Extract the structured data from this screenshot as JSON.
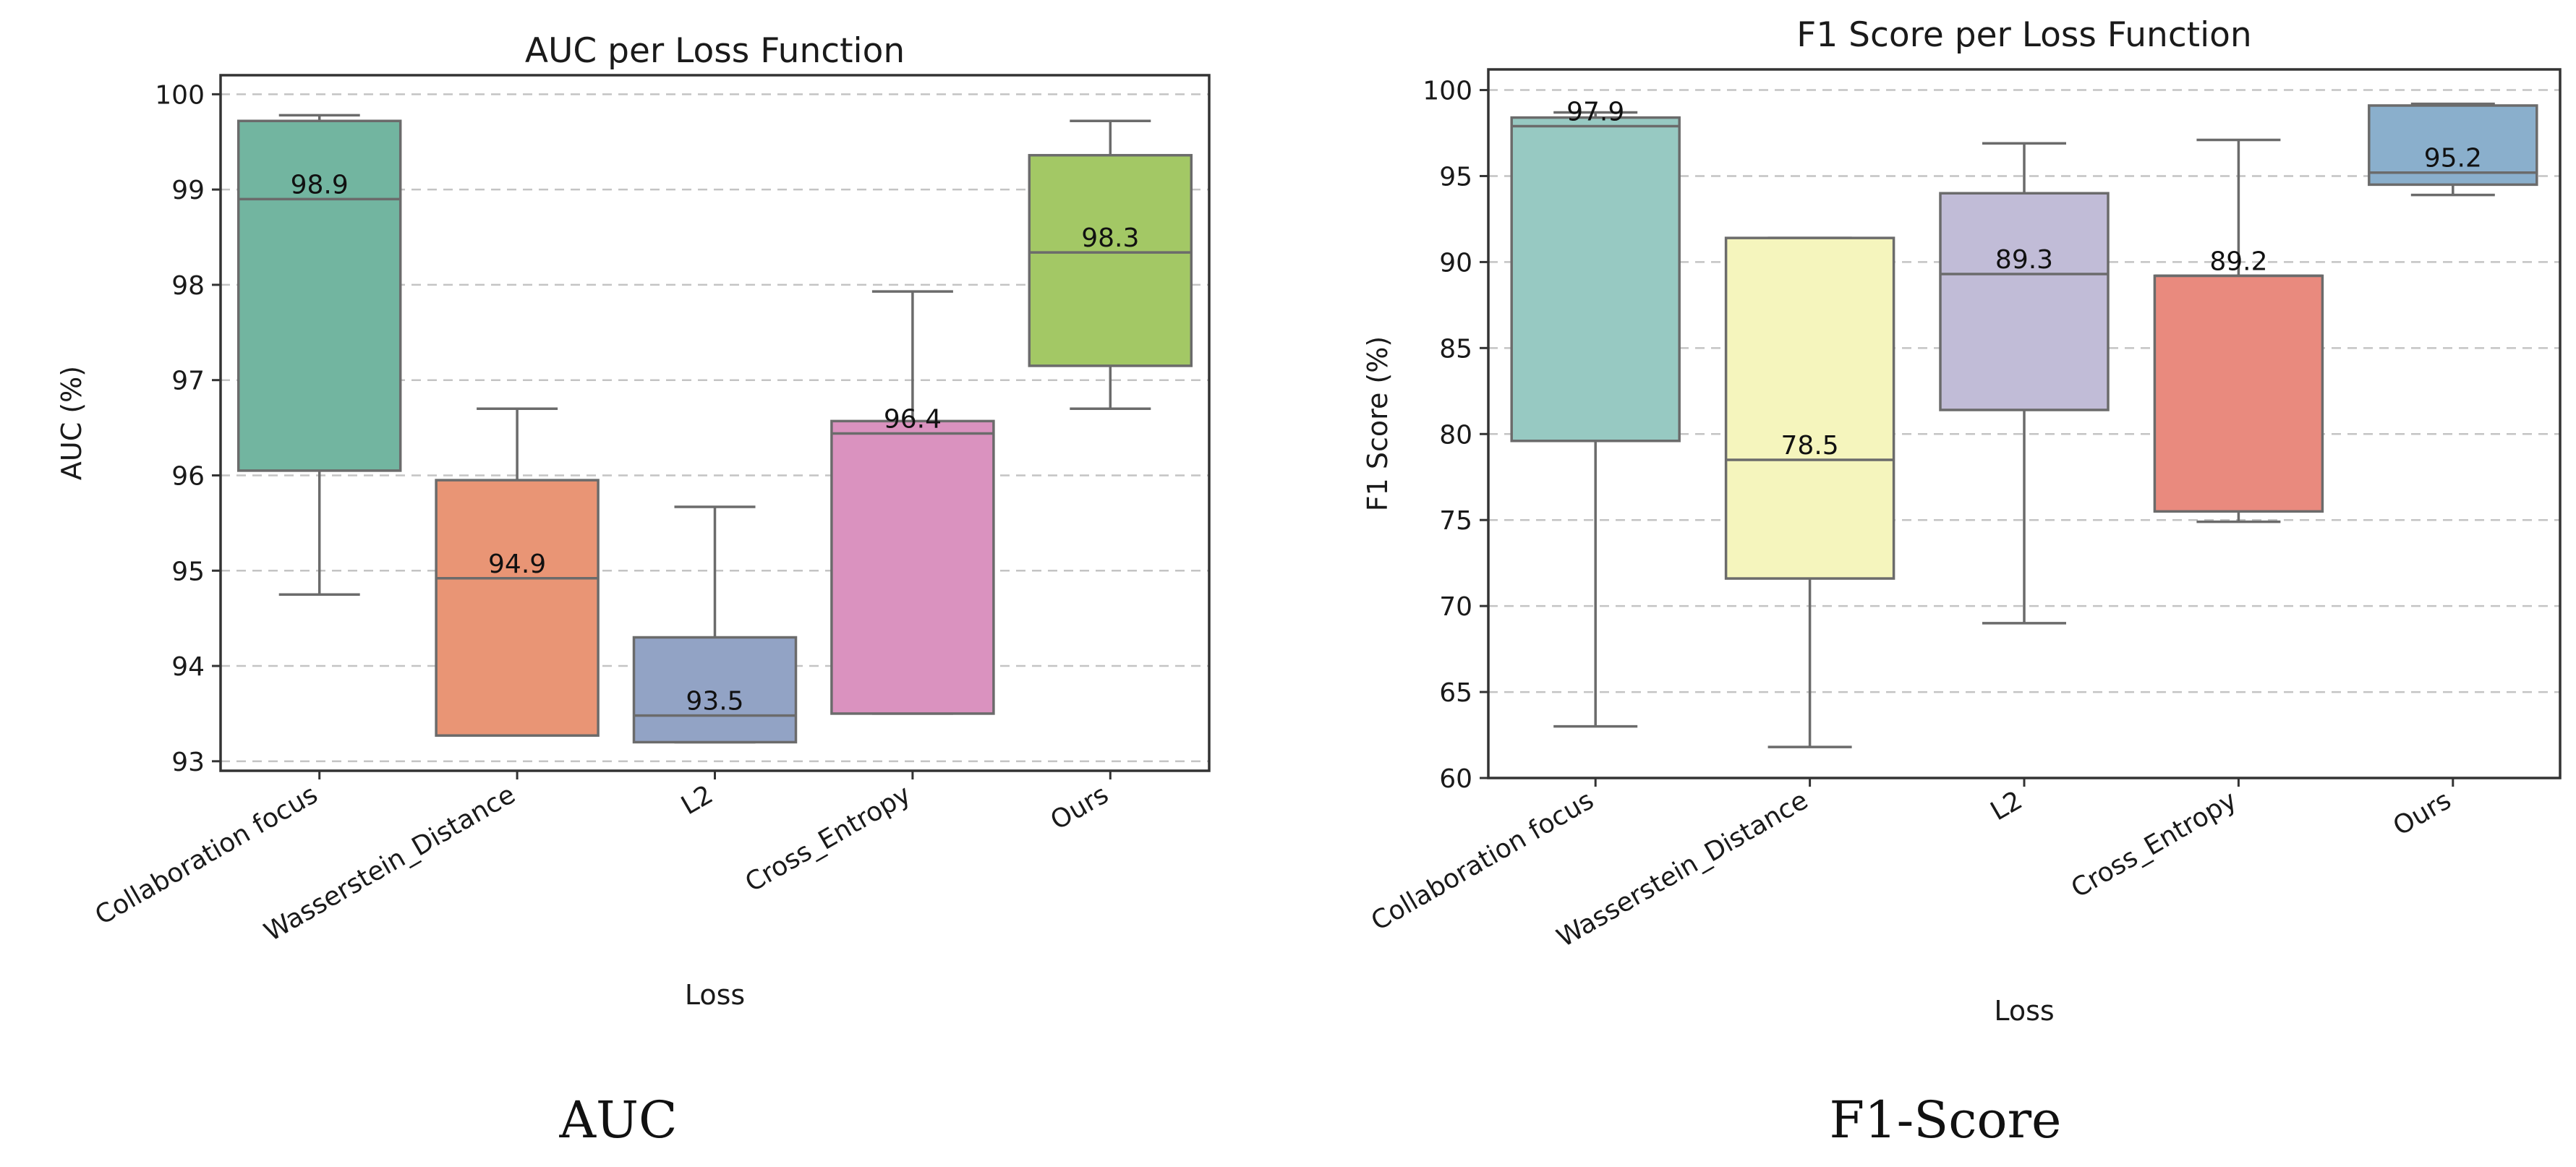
{
  "chart_data": [
    {
      "type": "box",
      "title": "AUC per Loss Function",
      "xlabel": "Loss",
      "ylabel": "AUC (%)",
      "ylim": [
        92.9,
        100.2
      ],
      "yticks": [
        93,
        94,
        95,
        96,
        97,
        98,
        99,
        100
      ],
      "grid": true,
      "categories": [
        "Collaboration focus",
        "Wasserstein_Distance",
        "L2",
        "Cross_Entropy",
        "Ours"
      ],
      "colors": [
        "#72b5a0",
        "#e99575",
        "#92a3c5",
        "#da92bf",
        "#a3c865"
      ],
      "boxes": [
        {
          "min": 94.75,
          "q1": 96.05,
          "median": 98.9,
          "q3": 99.72,
          "max": 99.78
        },
        {
          "min": 93.27,
          "q1": 93.27,
          "median": 94.92,
          "q3": 95.95,
          "max": 96.7
        },
        {
          "min": 93.2,
          "q1": 93.2,
          "median": 93.48,
          "q3": 94.3,
          "max": 95.67
        },
        {
          "min": 93.5,
          "q1": 93.5,
          "median": 96.44,
          "q3": 96.57,
          "max": 97.93
        },
        {
          "min": 96.7,
          "q1": 97.15,
          "median": 98.34,
          "q3": 99.36,
          "max": 99.72
        }
      ],
      "median_labels": [
        "98.9",
        "94.9",
        "93.5",
        "96.4",
        "98.3"
      ],
      "caption": "AUC"
    },
    {
      "type": "box",
      "title": "F1 Score per Loss Function",
      "xlabel": "Loss",
      "ylabel": "F1 Score (%)",
      "ylim": [
        60,
        101.2
      ],
      "yticks": [
        60,
        65,
        70,
        75,
        80,
        85,
        90,
        95,
        100
      ],
      "grid": true,
      "categories": [
        "Collaboration focus",
        "Wasserstein_Distance",
        "L2",
        "Cross_Entropy",
        "Ours"
      ],
      "colors": [
        "#97c9c2",
        "#f5f5bd",
        "#c1bcd7",
        "#e98a7e",
        "#8aafcc"
      ],
      "boxes": [
        {
          "min": 63.0,
          "q1": 79.6,
          "median": 97.9,
          "q3": 98.4,
          "max": 98.7
        },
        {
          "min": 61.8,
          "q1": 71.6,
          "median": 78.5,
          "q3": 91.4,
          "max": 91.4
        },
        {
          "min": 69.0,
          "q1": 81.4,
          "median": 89.3,
          "q3": 94.0,
          "max": 96.9
        },
        {
          "min": 74.9,
          "q1": 75.5,
          "median": 89.2,
          "q3": 89.2,
          "max": 97.1
        },
        {
          "min": 93.9,
          "q1": 94.5,
          "median": 95.2,
          "q3": 99.1,
          "max": 99.2
        }
      ],
      "median_labels": [
        "97.9",
        "78.5",
        "89.3",
        "89.2",
        "95.2"
      ],
      "caption": "F1-Score"
    }
  ]
}
